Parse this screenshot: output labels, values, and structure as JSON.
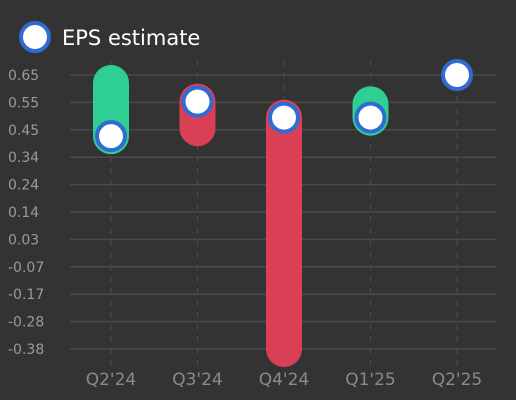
{
  "legend": {
    "label": "EPS estimate",
    "position": "top-left"
  },
  "colors": {
    "background": "#333333",
    "beat": "#2fcf94",
    "miss": "#d93f55",
    "estimate_fill": "#ffffff",
    "estimate_stroke": "#2f6bd0",
    "grid": "#4a4a4a"
  },
  "chart_data": {
    "type": "bar",
    "title": "",
    "xlabel": "",
    "ylabel": "",
    "categories": [
      "Q2'24",
      "Q3'24",
      "Q4'24",
      "Q1'25",
      "Q2'25"
    ],
    "yticks": [
      "0.65",
      "0.55",
      "0.45",
      "0.34",
      "0.24",
      "0.14",
      "0.03",
      "-0.07",
      "-0.17",
      "-0.28",
      "-0.38"
    ],
    "ylim": [
      -0.38,
      0.65
    ],
    "grid": true,
    "series": [
      {
        "name": "EPS estimate",
        "values": [
          0.42,
          0.55,
          0.49,
          0.49,
          0.65
        ]
      },
      {
        "values": [
          0.62,
          0.45,
          -0.38,
          0.54,
          null
        ]
      }
    ]
  }
}
